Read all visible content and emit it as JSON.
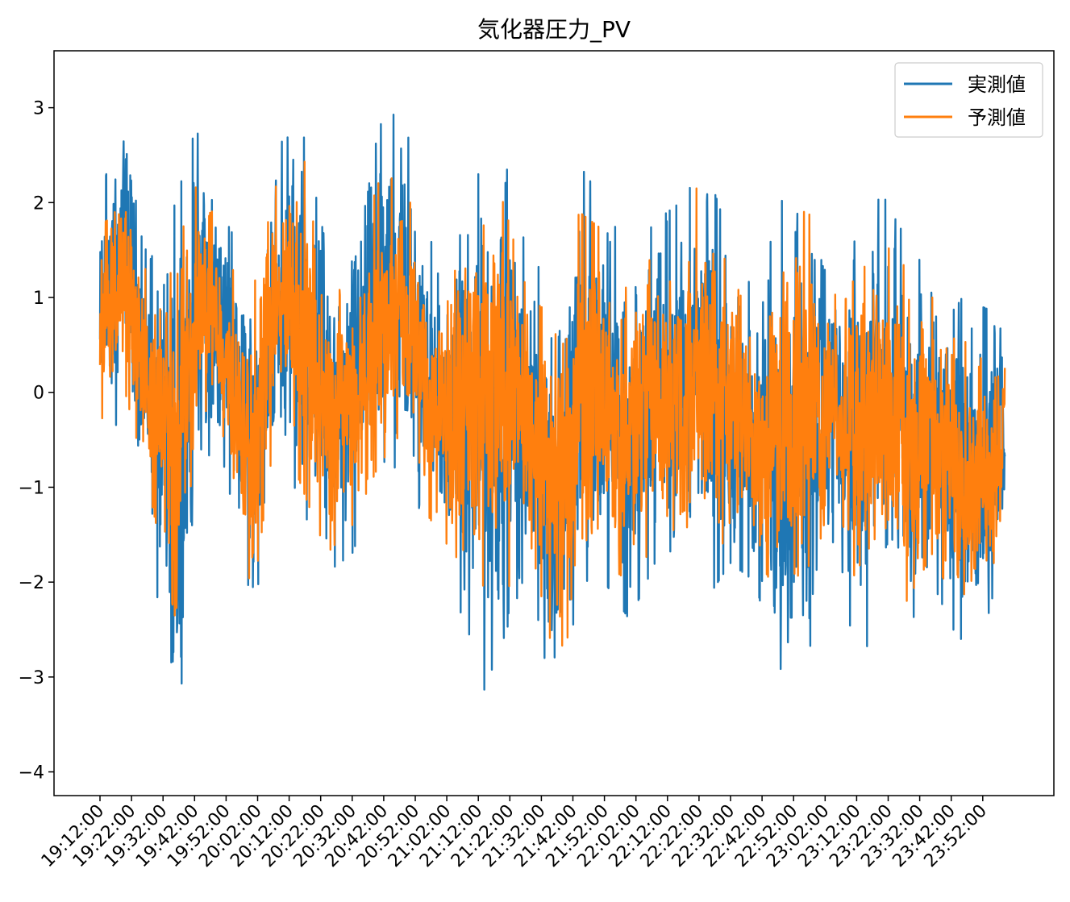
{
  "chart_data": {
    "type": "line",
    "title": "気化器圧力_PV",
    "xlabel": "",
    "ylabel": "",
    "x_start": "19:12:00",
    "x_end": "23:59:00",
    "sample_interval_seconds": 6,
    "xtick_labels": [
      "19:12:00",
      "19:22:00",
      "19:32:00",
      "19:42:00",
      "19:52:00",
      "20:02:00",
      "20:12:00",
      "20:22:00",
      "20:32:00",
      "20:42:00",
      "20:52:00",
      "21:02:00",
      "21:12:00",
      "21:22:00",
      "21:32:00",
      "21:42:00",
      "21:52:00",
      "22:02:00",
      "22:12:00",
      "22:22:00",
      "22:32:00",
      "22:42:00",
      "22:52:00",
      "23:02:00",
      "23:12:00",
      "23:22:00",
      "23:32:00",
      "23:42:00",
      "23:52:00"
    ],
    "yticks": [
      3,
      2,
      1,
      0,
      -1,
      -2,
      -3,
      -4
    ],
    "ytick_labels": [
      "3",
      "2",
      "1",
      "0",
      "−1",
      "−2",
      "−3",
      "−4"
    ],
    "ylim": [
      -4.25,
      3.6
    ],
    "grid": false,
    "legend_position": "upper right",
    "series": [
      {
        "name": "実測値",
        "color": "#1f77b4",
        "envelope_times": [
          "19:12:00",
          "19:20:00",
          "19:28:00",
          "19:36:00",
          "19:44:00",
          "19:52:00",
          "20:00:00",
          "20:08:00",
          "20:16:00",
          "20:24:00",
          "20:32:00",
          "20:40:00",
          "20:48:00",
          "20:56:00",
          "21:04:00",
          "21:12:00",
          "21:20:00",
          "21:28:00",
          "21:36:00",
          "21:44:00",
          "21:52:00",
          "22:00:00",
          "22:08:00",
          "22:16:00",
          "22:24:00",
          "22:32:00",
          "22:40:00",
          "22:48:00",
          "22:56:00",
          "23:04:00",
          "23:12:00",
          "23:20:00",
          "23:28:00",
          "23:36:00",
          "23:44:00",
          "23:52:00",
          "23:59:00"
        ],
        "upper": [
          2.0,
          3.2,
          1.4,
          2.0,
          3.0,
          1.8,
          1.3,
          2.6,
          2.8,
          1.5,
          1.5,
          2.8,
          3.0,
          1.6,
          1.5,
          2.3,
          2.5,
          1.4,
          1.2,
          2.4,
          2.0,
          1.4,
          1.8,
          2.0,
          2.4,
          1.6,
          1.0,
          2.0,
          2.5,
          1.5,
          1.6,
          2.1,
          1.6,
          1.3,
          1.0,
          0.9,
          0.8
        ],
        "lower": [
          -0.6,
          -0.2,
          -1.5,
          -3.9,
          -0.6,
          -0.8,
          -2.6,
          -0.5,
          -1.2,
          -1.9,
          -1.7,
          -1.0,
          -0.7,
          -1.5,
          -1.9,
          -3.3,
          -2.6,
          -1.8,
          -3.4,
          -2.6,
          -2.0,
          -2.4,
          -1.8,
          -1.6,
          -2.2,
          -1.8,
          -2.0,
          -3.2,
          -2.9,
          -1.5,
          -2.8,
          -2.5,
          -2.5,
          -2.0,
          -2.6,
          -2.6,
          -1.6
        ]
      },
      {
        "name": "予測値",
        "color": "#ff7f0e",
        "envelope_times": [
          "19:12:00",
          "19:20:00",
          "19:28:00",
          "19:36:00",
          "19:44:00",
          "19:52:00",
          "20:00:00",
          "20:08:00",
          "20:16:00",
          "20:24:00",
          "20:32:00",
          "20:40:00",
          "20:48:00",
          "20:56:00",
          "21:04:00",
          "21:12:00",
          "21:20:00",
          "21:28:00",
          "21:36:00",
          "21:44:00",
          "21:52:00",
          "22:00:00",
          "22:08:00",
          "22:16:00",
          "22:24:00",
          "22:32:00",
          "22:40:00",
          "22:48:00",
          "22:56:00",
          "23:04:00",
          "23:12:00",
          "23:20:00",
          "23:28:00",
          "23:36:00",
          "23:44:00",
          "23:52:00",
          "23:59:00"
        ],
        "upper": [
          1.6,
          2.5,
          1.0,
          1.6,
          2.3,
          1.4,
          1.0,
          2.2,
          2.6,
          1.1,
          1.2,
          2.2,
          2.3,
          1.3,
          1.2,
          2.3,
          2.0,
          1.0,
          0.8,
          1.9,
          1.7,
          1.0,
          1.5,
          1.5,
          2.5,
          1.3,
          0.6,
          1.5,
          2.0,
          1.0,
          1.2,
          1.6,
          1.3,
          1.0,
          0.5,
          0.6,
          0.5
        ],
        "lower": [
          -0.3,
          0.0,
          -1.1,
          -2.4,
          -0.4,
          -0.5,
          -2.3,
          -0.3,
          -1.0,
          -1.7,
          -1.4,
          -0.8,
          -0.4,
          -1.3,
          -1.7,
          -2.0,
          -2.2,
          -1.5,
          -2.8,
          -2.4,
          -1.8,
          -2.0,
          -1.6,
          -1.4,
          -1.8,
          -1.5,
          -1.7,
          -2.2,
          -2.3,
          -1.3,
          -2.0,
          -2.1,
          -2.2,
          -1.7,
          -2.3,
          -2.2,
          -1.4
        ]
      }
    ]
  }
}
